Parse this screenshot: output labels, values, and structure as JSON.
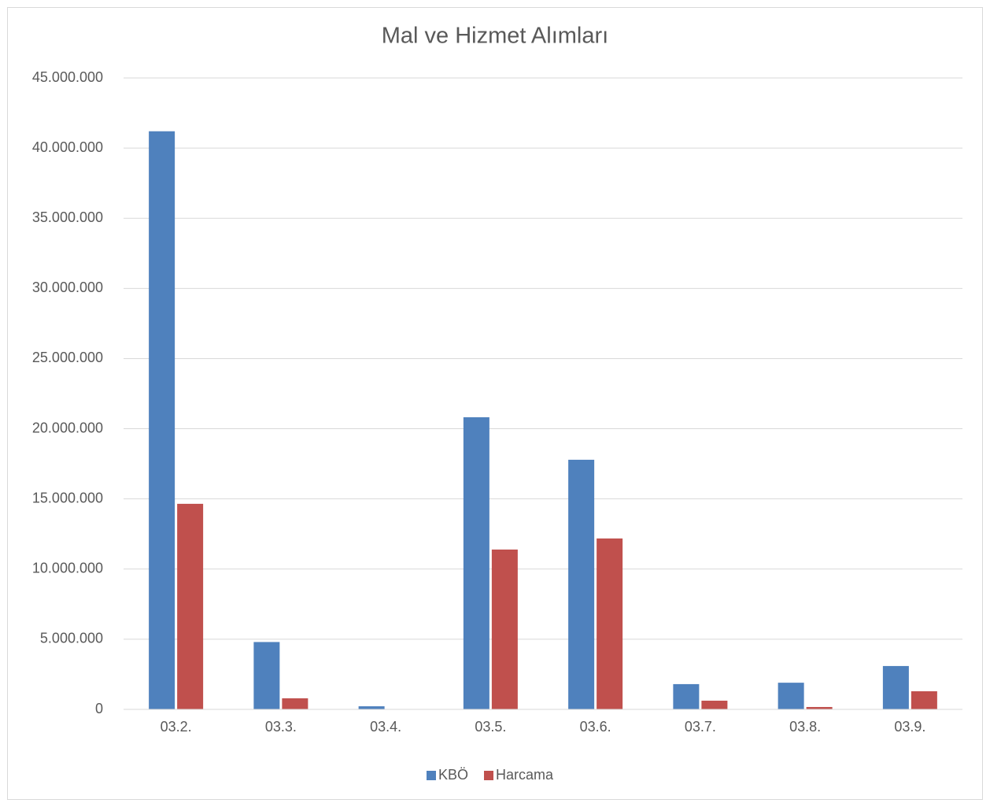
{
  "chart_data": {
    "type": "bar",
    "title": "Mal ve Hizmet Alımları",
    "categories": [
      "03.2.",
      "03.3.",
      "03.4.",
      "03.5.",
      "03.6.",
      "03.7.",
      "03.8.",
      "03.9."
    ],
    "series": [
      {
        "name": "KBÖ",
        "color": "#4f81bd",
        "values": [
          41200000,
          4800000,
          220000,
          20820000,
          17790000,
          1800000,
          1900000,
          3090000
        ]
      },
      {
        "name": "Harcama",
        "color": "#c0504d",
        "values": [
          14650000,
          790000,
          0,
          11390000,
          12180000,
          620000,
          170000,
          1290000
        ]
      }
    ],
    "ylim": [
      0,
      45000000
    ],
    "yticks": [
      0,
      {
        "value": 5000000,
        "label": "5.000.000"
      },
      {
        "value": 10000000,
        "label": "10.000.000"
      },
      {
        "value": 15000000,
        "label": "15.000.000"
      },
      {
        "value": 20000000,
        "label": "20.000.000"
      },
      {
        "value": 25000000,
        "label": "25.000.000"
      },
      {
        "value": 30000000,
        "label": "30.000.000"
      },
      {
        "value": 35000000,
        "label": "35.000.000"
      },
      {
        "value": 40000000,
        "label": "40.000.000"
      },
      {
        "value": 45000000,
        "label": "45.000.000"
      }
    ],
    "grid": true,
    "legend": "bottom"
  }
}
